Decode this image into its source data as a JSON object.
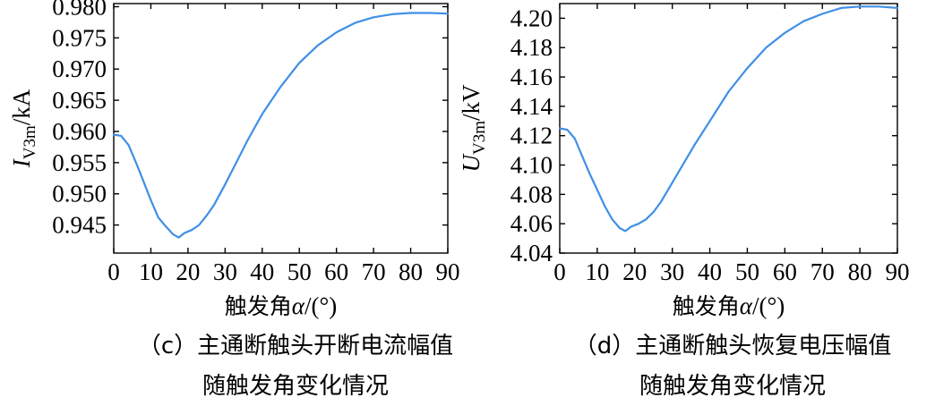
{
  "chart_data": [
    {
      "type": "line",
      "panel": "c",
      "ylabel": {
        "main": "I",
        "sub": "V3m",
        "unit": "/kA"
      },
      "xlabel": {
        "prefix": "触发角",
        "symbol": "α",
        "unit": "/(°)"
      },
      "caption": [
        "（c）主通断触头开断电流幅值",
        "随触发角变化情况"
      ],
      "xlim": [
        0,
        90
      ],
      "ylim": [
        0.9405,
        0.9805
      ],
      "xticks": [
        0,
        10,
        20,
        30,
        40,
        50,
        60,
        70,
        80,
        90
      ],
      "yticks": [
        0.945,
        0.95,
        0.955,
        0.96,
        0.965,
        0.97,
        0.975,
        0.98
      ],
      "ytick_labels": [
        "0.945",
        "0.950",
        "0.955",
        "0.960",
        "0.965",
        "0.970",
        "0.975",
        "0.980"
      ],
      "series_color": "#3f8fe6",
      "x": [
        0,
        2,
        4,
        6,
        8,
        10,
        12,
        14,
        16,
        17.5,
        19,
        21,
        23,
        25,
        27,
        30,
        33,
        36,
        40,
        45,
        50,
        55,
        60,
        65,
        70,
        75,
        80,
        85,
        90
      ],
      "y": [
        0.9595,
        0.9593,
        0.9578,
        0.955,
        0.952,
        0.949,
        0.9462,
        0.9448,
        0.9435,
        0.943,
        0.9437,
        0.9442,
        0.945,
        0.9465,
        0.9482,
        0.9515,
        0.955,
        0.9585,
        0.9628,
        0.9672,
        0.971,
        0.9738,
        0.9759,
        0.9774,
        0.9783,
        0.9788,
        0.979,
        0.979,
        0.9789
      ]
    },
    {
      "type": "line",
      "panel": "d",
      "ylabel": {
        "main": "U",
        "sub": "V3m",
        "unit": "/kV"
      },
      "xlabel": {
        "prefix": "触发角",
        "symbol": "α",
        "unit": "/(°)"
      },
      "caption": [
        "（d）主通断触头恢复电压幅值",
        "随触发角变化情况"
      ],
      "xlim": [
        0,
        90
      ],
      "ylim": [
        4.04,
        4.21
      ],
      "xticks": [
        0,
        10,
        20,
        30,
        40,
        50,
        60,
        70,
        80,
        90
      ],
      "yticks": [
        4.04,
        4.06,
        4.08,
        4.1,
        4.12,
        4.14,
        4.16,
        4.18,
        4.2
      ],
      "ytick_labels": [
        "4.04",
        "4.06",
        "4.08",
        "4.10",
        "4.12",
        "4.14",
        "4.16",
        "4.18",
        "4.20"
      ],
      "series_color": "#3f8fe6",
      "x": [
        0,
        2,
        4,
        6,
        8,
        10,
        12,
        14,
        16,
        17.5,
        19,
        21,
        23,
        25,
        27,
        30,
        33,
        36,
        40,
        45,
        50,
        55,
        60,
        65,
        70,
        75,
        80,
        85,
        90
      ],
      "y": [
        4.125,
        4.124,
        4.118,
        4.106,
        4.094,
        4.083,
        4.072,
        4.063,
        4.057,
        4.055,
        4.058,
        4.06,
        4.063,
        4.068,
        4.075,
        4.088,
        4.101,
        4.114,
        4.13,
        4.15,
        4.166,
        4.18,
        4.19,
        4.198,
        4.203,
        4.207,
        4.208,
        4.208,
        4.207
      ]
    }
  ]
}
